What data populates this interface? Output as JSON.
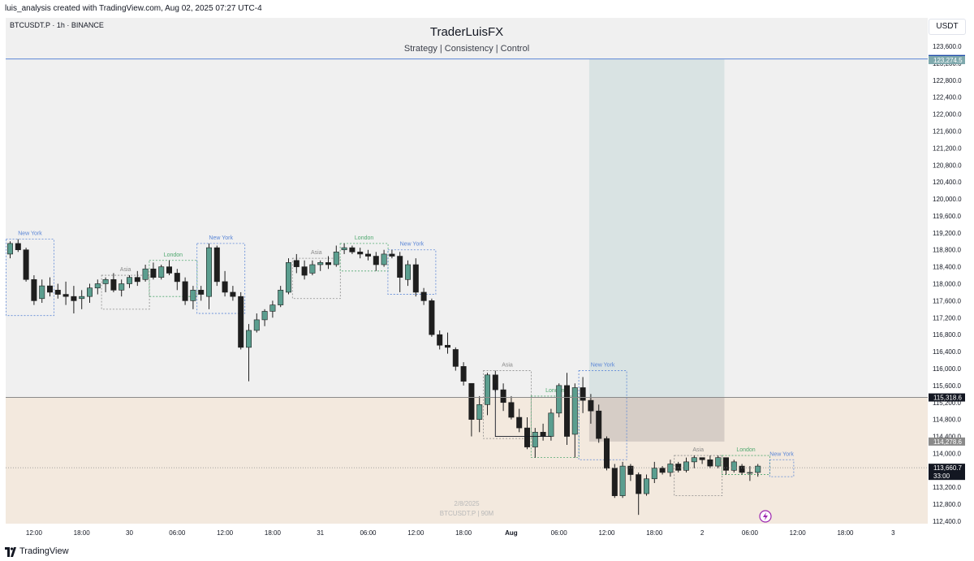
{
  "header": {
    "author_line": "luis_analysis created with TradingView.com, Aug 02, 2025 07:27 UTC-4",
    "symbol_line": "BTCUSDT.P · 1h · BINANCE",
    "title": "TraderLuisFX",
    "subtitle": "Strategy | Consistency | Control",
    "currency_button": "USDT"
  },
  "footer": {
    "brand": "TradingView"
  },
  "watermark": {
    "line1": "2/8/2025",
    "line2": "BTCUSDT.P | 90M"
  },
  "colors": {
    "bull": "#5b9e8f",
    "bear": "#1e1e1e",
    "pane_bg": "#f0f0f0",
    "target_zone": "#d9e3e3",
    "demand_zone": "#f3e9de",
    "stop_zone": "#d6cdc6",
    "asia_label": "#8a8a8a",
    "london_label": "#4fa86f",
    "newyork_label": "#5b86d6"
  },
  "chart_data": {
    "type": "candlestick",
    "yaxis": {
      "min": 112400,
      "max": 123600,
      "step": 400,
      "tick_labels": [
        "123,600.0",
        "123,200.0",
        "122,800.0",
        "122,400.0",
        "122,000.0",
        "121,600.0",
        "121,200.0",
        "120,800.0",
        "120,400.0",
        "120,000.0",
        "119,600.0",
        "119,200.0",
        "118,800.0",
        "118,400.0",
        "118,000.0",
        "117,600.0",
        "117,200.0",
        "116,800.0",
        "116,400.0",
        "116,000.0",
        "115,600.0",
        "115,200.0",
        "114,800.0",
        "114,400.0",
        "114,000.0",
        "113,600.0",
        "113,200.0",
        "112,800.0",
        "112,400.0"
      ]
    },
    "xaxis": {
      "ticks": [
        {
          "label": "12:00",
          "bar": 3
        },
        {
          "label": "18:00",
          "bar": 9
        },
        {
          "label": "30",
          "bar": 15
        },
        {
          "label": "06:00",
          "bar": 21
        },
        {
          "label": "12:00",
          "bar": 27
        },
        {
          "label": "18:00",
          "bar": 33
        },
        {
          "label": "31",
          "bar": 39
        },
        {
          "label": "06:00",
          "bar": 45
        },
        {
          "label": "12:00",
          "bar": 51
        },
        {
          "label": "18:00",
          "bar": 57
        },
        {
          "label": "Aug",
          "bar": 63
        },
        {
          "label": "06:00",
          "bar": 69
        },
        {
          "label": "12:00",
          "bar": 75
        },
        {
          "label": "18:00",
          "bar": 81
        },
        {
          "label": "2",
          "bar": 87
        },
        {
          "label": "06:00",
          "bar": 93
        },
        {
          "label": "12:00",
          "bar": 99
        },
        {
          "label": "18:00",
          "bar": 105
        },
        {
          "label": "3",
          "bar": 111
        }
      ]
    },
    "candles": [
      [
        118700,
        119000,
        118600,
        118950
      ],
      [
        118950,
        119050,
        118750,
        118800
      ],
      [
        118800,
        118850,
        118050,
        118100
      ],
      [
        118100,
        118200,
        117500,
        117600
      ],
      [
        117650,
        118100,
        117550,
        117950
      ],
      [
        117950,
        118150,
        117700,
        117800
      ],
      [
        117850,
        118000,
        117650,
        117750
      ],
      [
        117750,
        118050,
        117500,
        117700
      ],
      [
        117700,
        117950,
        117300,
        117600
      ],
      [
        117650,
        117850,
        117400,
        117700
      ],
      [
        117700,
        118000,
        117550,
        117900
      ],
      [
        117900,
        118100,
        117750,
        118000
      ],
      [
        118000,
        118150,
        117800,
        118100
      ],
      [
        118100,
        118250,
        117800,
        117850
      ],
      [
        117850,
        118100,
        117700,
        118000
      ],
      [
        118000,
        118200,
        117900,
        118150
      ],
      [
        118150,
        118300,
        117950,
        118050
      ],
      [
        118100,
        118450,
        118050,
        118350
      ],
      [
        118350,
        118500,
        118100,
        118150
      ],
      [
        118150,
        118450,
        118100,
        118400
      ],
      [
        118400,
        118550,
        118200,
        118250
      ],
      [
        118250,
        118350,
        117850,
        118050
      ],
      [
        118050,
        118150,
        117500,
        117600
      ],
      [
        117600,
        117950,
        117400,
        117850
      ],
      [
        117850,
        117950,
        117600,
        117750
      ],
      [
        117700,
        118950,
        117400,
        118850
      ],
      [
        118850,
        118900,
        117950,
        118050
      ],
      [
        118050,
        118300,
        117700,
        117800
      ],
      [
        117800,
        117950,
        117600,
        117700
      ],
      [
        117700,
        117800,
        116450,
        116500
      ],
      [
        116500,
        117050,
        115700,
        116900
      ],
      [
        116900,
        117300,
        116850,
        117150
      ],
      [
        117150,
        117400,
        117000,
        117350
      ],
      [
        117350,
        117600,
        117200,
        117500
      ],
      [
        117500,
        117950,
        117450,
        117850
      ],
      [
        117800,
        118600,
        117750,
        118500
      ],
      [
        118550,
        118700,
        118250,
        118400
      ],
      [
        118400,
        118550,
        118100,
        118200
      ],
      [
        118250,
        118550,
        118200,
        118450
      ],
      [
        118450,
        118550,
        118300,
        118500
      ],
      [
        118500,
        118650,
        118350,
        118450
      ],
      [
        118450,
        118900,
        118400,
        118750
      ],
      [
        118800,
        118950,
        118700,
        118850
      ],
      [
        118850,
        118900,
        118700,
        118750
      ],
      [
        118750,
        118850,
        118600,
        118700
      ],
      [
        118700,
        118800,
        118550,
        118650
      ],
      [
        118650,
        118750,
        118300,
        118450
      ],
      [
        118450,
        118800,
        118400,
        118700
      ],
      [
        118700,
        118800,
        118600,
        118650
      ],
      [
        118650,
        118750,
        117800,
        118150
      ],
      [
        118100,
        118550,
        117950,
        118450
      ],
      [
        118450,
        118600,
        117700,
        117800
      ],
      [
        117800,
        117900,
        117500,
        117600
      ],
      [
        117600,
        117650,
        116750,
        116800
      ],
      [
        116800,
        116900,
        116450,
        116550
      ],
      [
        116550,
        116850,
        116350,
        116500
      ],
      [
        116450,
        116500,
        115950,
        116050
      ],
      [
        116050,
        116150,
        115600,
        115700
      ],
      [
        115650,
        115650,
        114400,
        114800
      ],
      [
        114800,
        115350,
        114500,
        115150
      ],
      [
        115150,
        115900,
        114900,
        115850
      ],
      [
        115850,
        115950,
        115450,
        115500
      ],
      [
        115500,
        115650,
        115000,
        115200
      ],
      [
        115200,
        115350,
        114800,
        114850
      ],
      [
        114850,
        115050,
        114500,
        114600
      ],
      [
        114600,
        114850,
        114100,
        114150
      ],
      [
        114150,
        114600,
        113900,
        114500
      ],
      [
        114500,
        114700,
        114300,
        114400
      ],
      [
        114400,
        115050,
        114300,
        114950
      ],
      [
        114950,
        115650,
        114850,
        115600
      ],
      [
        115600,
        115900,
        114200,
        114400
      ],
      [
        114450,
        115650,
        113900,
        115550
      ],
      [
        115550,
        115800,
        114950,
        115250
      ],
      [
        115250,
        115400,
        114700,
        115000
      ],
      [
        115000,
        115150,
        114250,
        114350
      ],
      [
        114350,
        114400,
        113600,
        113650
      ],
      [
        113650,
        113750,
        112950,
        113000
      ],
      [
        113000,
        113800,
        112950,
        113700
      ],
      [
        113700,
        113750,
        113350,
        113500
      ],
      [
        113500,
        113550,
        112550,
        113050
      ],
      [
        113050,
        113500,
        113000,
        113400
      ],
      [
        113400,
        113800,
        113300,
        113650
      ],
      [
        113650,
        113700,
        113500,
        113550
      ],
      [
        113550,
        113850,
        113450,
        113750
      ],
      [
        113750,
        113800,
        113550,
        113600
      ],
      [
        113600,
        113900,
        113550,
        113800
      ],
      [
        113800,
        113950,
        113650,
        113900
      ],
      [
        113900,
        113900,
        113750,
        113850
      ],
      [
        113850,
        113950,
        113650,
        113700
      ],
      [
        113700,
        113950,
        113650,
        113900
      ],
      [
        113900,
        113900,
        113500,
        113600
      ],
      [
        113600,
        113850,
        113550,
        113800
      ],
      [
        113700,
        113750,
        113500,
        113550
      ],
      [
        113550,
        113700,
        113350,
        113550
      ],
      [
        113550,
        113750,
        113450,
        113700
      ]
    ],
    "sessions": [
      {
        "label": "New York",
        "type": "newyork",
        "start": 0,
        "end": 5,
        "high": 119050,
        "low": 117250
      },
      {
        "label": "Asia",
        "type": "asia",
        "start": 12,
        "end": 17,
        "high": 118200,
        "low": 117400
      },
      {
        "label": "London",
        "type": "london",
        "start": 18,
        "end": 23,
        "high": 118550,
        "low": 117700
      },
      {
        "label": "New York",
        "type": "newyork",
        "start": 24,
        "end": 29,
        "high": 118950,
        "low": 117300
      },
      {
        "label": "Asia",
        "type": "asia",
        "start": 36,
        "end": 41,
        "high": 118600,
        "low": 117650
      },
      {
        "label": "London",
        "type": "london",
        "start": 42,
        "end": 47,
        "high": 118950,
        "low": 118300
      },
      {
        "label": "New York",
        "type": "newyork",
        "start": 48,
        "end": 53,
        "high": 118800,
        "low": 117750
      },
      {
        "label": "Asia",
        "type": "asia",
        "start": 60,
        "end": 65,
        "high": 115950,
        "low": 114350
      },
      {
        "label": "London",
        "type": "london",
        "start": 66,
        "end": 71,
        "high": 115350,
        "low": 113900
      },
      {
        "label": "New York",
        "type": "newyork",
        "start": 72,
        "end": 77,
        "high": 115950,
        "low": 113850
      },
      {
        "label": "Asia",
        "type": "asia",
        "start": 84,
        "end": 89,
        "high": 113950,
        "low": 113000
      },
      {
        "label": "London",
        "type": "london",
        "start": 90,
        "end": 95,
        "high": 113950,
        "low": 113500
      },
      {
        "label": "New York",
        "type": "newyork",
        "start": 96,
        "end": 98,
        "high": 113850,
        "low": 113450
      }
    ],
    "levels": {
      "target_line": 123300,
      "zone_top": 115318.6,
      "stop_level": 114278.6,
      "current_price": 113660.7,
      "sweep_low": 114400
    },
    "price_tags": [
      {
        "value": 123300,
        "text": "123,300.0",
        "bg": "#1f4aa8",
        "fg": "#ffffff"
      },
      {
        "value": 123274.5,
        "text": "123,274.5",
        "bg": "#7fa9ad",
        "fg": "#ffffff"
      },
      {
        "value": 115318.6,
        "text": "115,318.6",
        "bg": "#131722",
        "fg": "#ffffff"
      },
      {
        "value": 114278.6,
        "text": "114,278.6",
        "bg": "#8a8a8a",
        "fg": "#ffffff"
      },
      {
        "value": 113660.7,
        "text": "113,660.7",
        "bg": "#131722",
        "fg": "#ffffff",
        "sub": "33:00"
      }
    ]
  }
}
